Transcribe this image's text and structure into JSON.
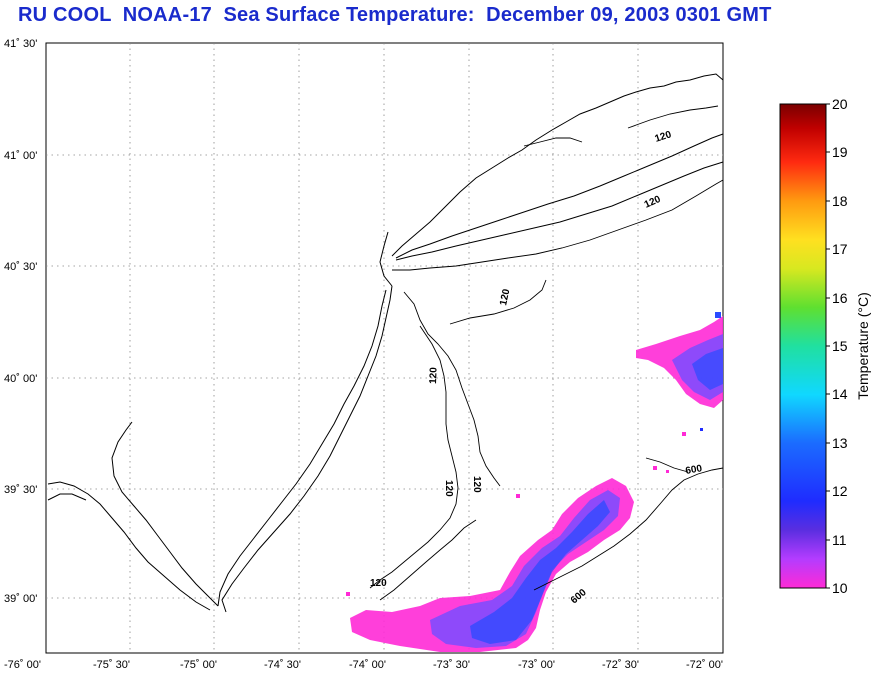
{
  "title": "RU COOL  NOAA-17  Sea Surface Temperature:  December 09, 2003 0301 GMT",
  "map": {
    "lat_labels": [
      "41˚ 30'",
      "41˚ 00'",
      "40˚ 30'",
      "40˚ 00'",
      "39˚ 30'",
      "39˚ 00'"
    ],
    "lon_labels": [
      "-76˚ 00'",
      "-75˚ 30'",
      "-75˚ 00'",
      "-74˚ 30'",
      "-74˚ 00'",
      "-73˚ 30'",
      "-73˚ 00'",
      "-72˚ 30'",
      "-72˚ 00'"
    ],
    "contour_labels": [
      "120",
      "120",
      "120",
      "120",
      "120",
      "120",
      "120",
      "600",
      "600"
    ],
    "gridlines": "dotted",
    "coastline_color": "#000000"
  },
  "colorbar": {
    "label": "Temperature (°C)",
    "ticks": [
      "20",
      "19",
      "18",
      "17",
      "16",
      "15",
      "14",
      "13",
      "12",
      "11",
      "10"
    ],
    "min": 10,
    "max": 20
  },
  "colors": {
    "title": "#1a2bcc",
    "sst_low": "#ff2ad6",
    "sst_mid": "#7a4cff",
    "sst_high": "#2a4bff"
  }
}
